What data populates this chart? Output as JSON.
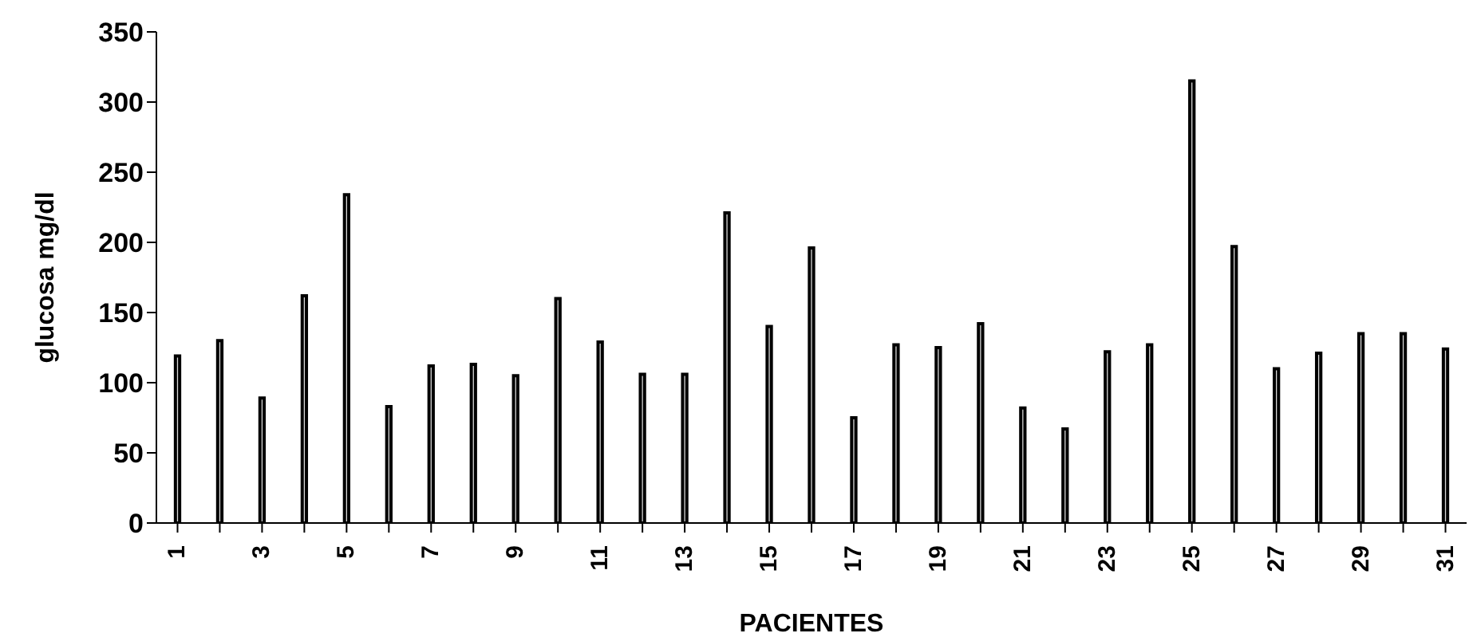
{
  "chart_data": {
    "type": "bar",
    "xlabel": "PACIENTES",
    "ylabel": "glucosa mg/dl",
    "categories": [
      "1",
      null,
      "3",
      null,
      "5",
      null,
      "7",
      null,
      "9",
      null,
      "11",
      null,
      "13",
      null,
      "15",
      null,
      "17",
      null,
      "19",
      null,
      "21",
      null,
      "23",
      null,
      "25",
      null,
      "27",
      null,
      "29",
      null,
      "31"
    ],
    "values": [
      119,
      130,
      89,
      162,
      234,
      83,
      112,
      113,
      105,
      160,
      129,
      106,
      106,
      221,
      140,
      196,
      75,
      127,
      125,
      142,
      82,
      67,
      122,
      127,
      315,
      197,
      110,
      121,
      135,
      135,
      124
    ],
    "color": "#d9d9d9",
    "ylim": [
      0,
      350
    ],
    "yticks": [
      0,
      50,
      100,
      150,
      200,
      250,
      300,
      350
    ],
    "grid": false,
    "legend": false
  }
}
